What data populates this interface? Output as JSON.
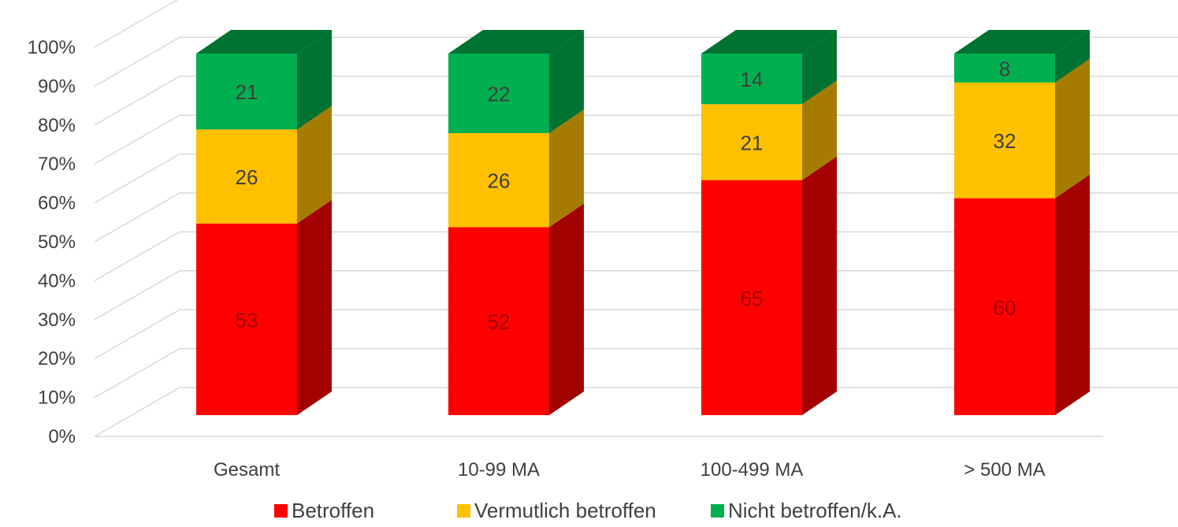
{
  "chart_data": {
    "type": "bar",
    "stacked": true,
    "percent_stacked": true,
    "three_d": true,
    "categories": [
      "Gesamt",
      "10-99 MA",
      "100-499 MA",
      "> 500 MA"
    ],
    "series": [
      {
        "name": "Betroffen",
        "values": [
          53,
          52,
          65,
          60
        ],
        "color": "#ff0000",
        "side_color": "#a30000",
        "label_color": "#a30000"
      },
      {
        "name": "Vermutlich betroffen",
        "values": [
          26,
          26,
          21,
          32
        ],
        "color": "#ffc000",
        "side_color": "#a67c00",
        "label_color": "#404040"
      },
      {
        "name": "Nicht betroffen/k.A.",
        "values": [
          21,
          22,
          14,
          8
        ],
        "color": "#00b050",
        "side_color": "#007232",
        "label_color": "#404040"
      }
    ],
    "y_ticks": [
      "0%",
      "10%",
      "20%",
      "30%",
      "40%",
      "50%",
      "60%",
      "70%",
      "80%",
      "90%",
      "100%"
    ],
    "ylim": [
      0,
      100
    ],
    "grid": true,
    "legend_position": "bottom"
  }
}
